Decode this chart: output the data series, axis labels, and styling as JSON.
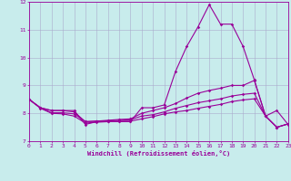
{
  "xlabel": "Windchill (Refroidissement éolien,°C)",
  "background_color": "#c8ecec",
  "grid_color": "#aaaacc",
  "line_color": "#990099",
  "x": [
    0,
    1,
    2,
    3,
    4,
    5,
    6,
    7,
    8,
    9,
    10,
    11,
    12,
    13,
    14,
    15,
    16,
    17,
    18,
    19,
    20,
    21,
    22,
    23
  ],
  "y_main": [
    8.5,
    8.2,
    8.1,
    8.1,
    8.1,
    7.6,
    7.7,
    7.7,
    7.7,
    7.7,
    8.2,
    8.2,
    8.3,
    9.5,
    10.4,
    11.1,
    11.9,
    11.2,
    11.2,
    10.4,
    9.2,
    7.9,
    8.1,
    7.6
  ],
  "y_line2": [
    8.5,
    8.2,
    8.1,
    8.1,
    8.05,
    7.7,
    7.72,
    7.75,
    7.78,
    7.8,
    8.0,
    8.1,
    8.2,
    8.35,
    8.55,
    8.72,
    8.82,
    8.9,
    9.0,
    9.0,
    9.18,
    7.9,
    7.5,
    7.62
  ],
  "y_line3": [
    8.5,
    8.2,
    8.02,
    8.02,
    7.98,
    7.7,
    7.72,
    7.73,
    7.75,
    7.77,
    7.9,
    7.95,
    8.05,
    8.18,
    8.28,
    8.38,
    8.45,
    8.52,
    8.62,
    8.68,
    8.72,
    7.9,
    7.5,
    7.62
  ],
  "y_line4": [
    8.5,
    8.18,
    8.0,
    7.98,
    7.9,
    7.65,
    7.68,
    7.7,
    7.72,
    7.72,
    7.8,
    7.88,
    7.98,
    8.05,
    8.1,
    8.18,
    8.25,
    8.32,
    8.42,
    8.48,
    8.52,
    7.9,
    7.5,
    7.62
  ],
  "ylim": [
    7,
    12
  ],
  "xlim": [
    0,
    23
  ],
  "yticks": [
    7,
    8,
    9,
    10,
    11,
    12
  ],
  "xticks": [
    0,
    1,
    2,
    3,
    4,
    5,
    6,
    7,
    8,
    9,
    10,
    11,
    12,
    13,
    14,
    15,
    16,
    17,
    18,
    19,
    20,
    21,
    22,
    23
  ],
  "marker": "D",
  "markersize": 1.8,
  "linewidth": 0.8
}
